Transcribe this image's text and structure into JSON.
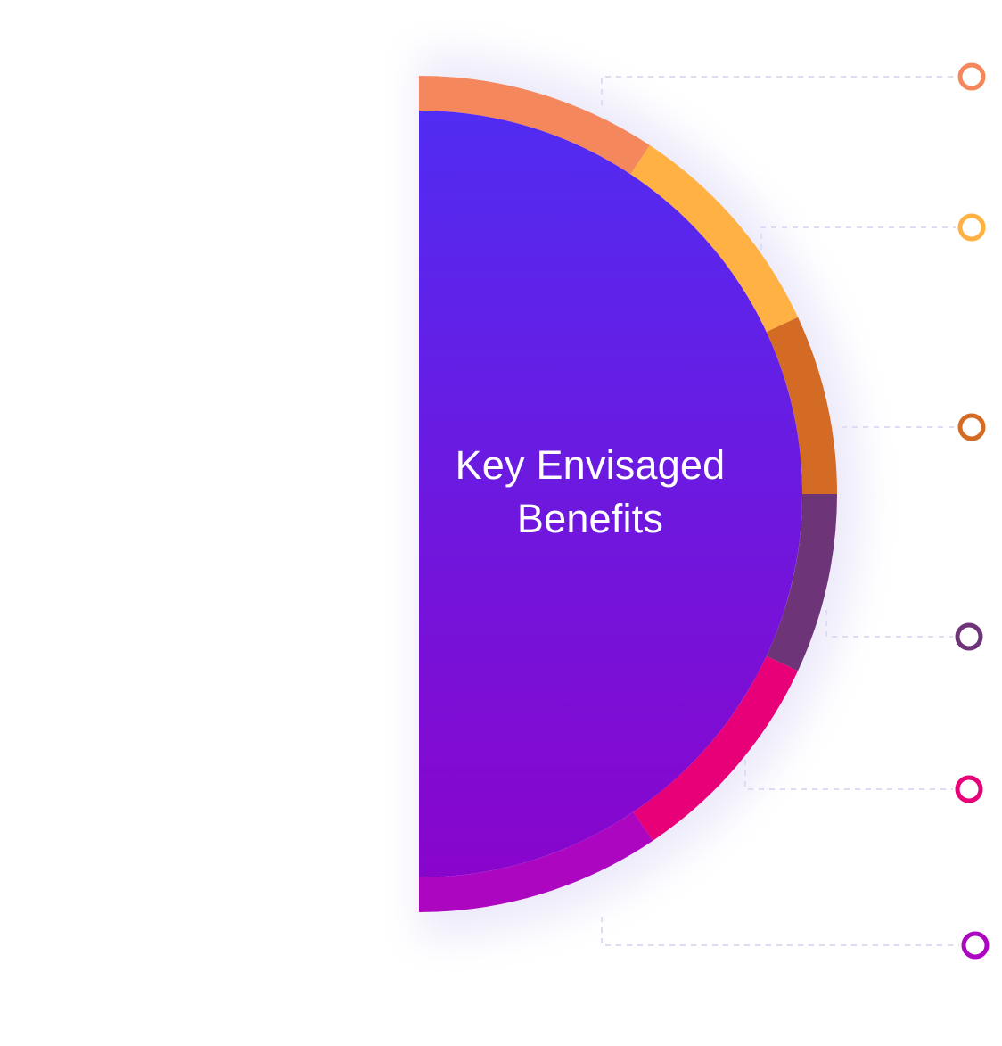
{
  "title": {
    "line1": "Key Envisaged",
    "line2": "Benefits"
  },
  "colors": {
    "background": "#ffffff",
    "core_top": "#512cf2",
    "core_bottom": "#8905cc",
    "connector": "#dcdcf5",
    "segments": [
      "#f4875c",
      "#ffb144",
      "#d46b24",
      "#6e3478",
      "#e80078",
      "#ad06c0"
    ]
  },
  "benefits": [
    {
      "color": "#f4875c",
      "marker": "ring-icon"
    },
    {
      "color": "#ffb144",
      "marker": "ring-icon"
    },
    {
      "color": "#d46b24",
      "marker": "ring-icon"
    },
    {
      "color": "#6e3478",
      "marker": "ring-icon"
    },
    {
      "color": "#e80078",
      "marker": "ring-icon"
    },
    {
      "color": "#ad06c0",
      "marker": "ring-icon"
    }
  ]
}
